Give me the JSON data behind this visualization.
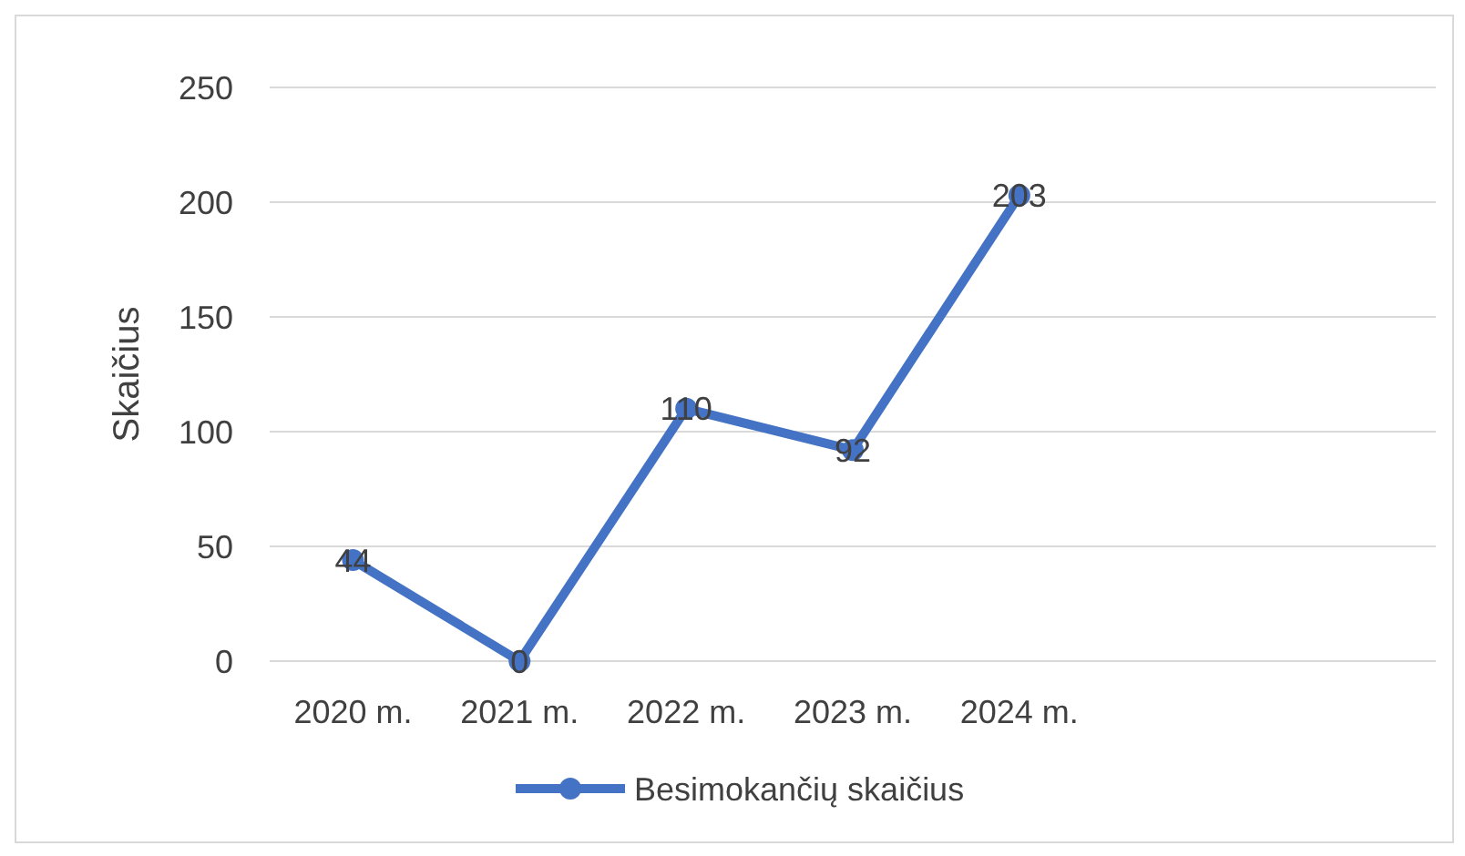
{
  "chart_data": {
    "type": "line",
    "ylabel": "Skaičius",
    "categories": [
      "2020 m.",
      "2021 m.",
      "2022 m.",
      "2023 m.",
      "2024 m.",
      null,
      null
    ],
    "series": [
      {
        "name": "Besimokančių skaičius",
        "color": "#4472c4",
        "values": [
          44,
          0,
          110,
          92,
          203,
          null,
          null
        ]
      }
    ],
    "ylim": [
      0,
      250
    ],
    "yticks": [
      0,
      50,
      100,
      150,
      200,
      250
    ],
    "grid": "y",
    "legend": "bottom",
    "marker": "circle",
    "data_labels": true
  }
}
